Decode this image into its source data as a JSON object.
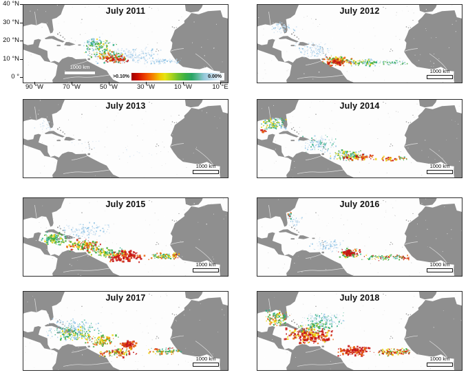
{
  "figure": {
    "land_color": "#8f8f8f",
    "ocean_color": "#fdfdfd",
    "border_color": "#2b2b2b",
    "description": "Eight map panels of the tropical Atlantic showing Sargassum areal density for July of 2011-2018"
  },
  "axis": {
    "y_tick_labels": [
      "40 °N",
      "30 °N",
      "20 °N",
      "10 °N",
      "0 °"
    ],
    "x_tick_labels": [
      "90 °W",
      "70 °W",
      "50 °W",
      "30 °W",
      "10 °W",
      "10 °E"
    ]
  },
  "colorbar": {
    "left_label": ">0.10%",
    "right_label": "0.00%"
  },
  "scalebar_label": "1000 km",
  "palette": {
    "r": "#c61616",
    "o": "#e8650e",
    "y": "#ecd512",
    "g": "#41ab36",
    "t": "#2fae85",
    "b": "#93c5e6",
    "p": "#d3e4f2"
  },
  "panels": [
    {
      "title": "July 2011",
      "scalebar": "light",
      "has_axes": true,
      "has_colorbar": true,
      "seed": 11,
      "clusters": [
        [
          150,
          74,
          58,
          13,
          230,
          1.5,
          "ppb"
        ],
        [
          205,
          82,
          28,
          5,
          80,
          1.3,
          "pb"
        ],
        [
          112,
          63,
          26,
          14,
          110,
          1.6,
          "tgby"
        ],
        [
          128,
          76,
          26,
          9,
          110,
          1.7,
          "gyotr"
        ],
        [
          134,
          80,
          20,
          6,
          45,
          1.9,
          "rro"
        ],
        [
          101,
          54,
          12,
          8,
          45,
          1.6,
          "tgb"
        ]
      ]
    },
    {
      "title": "July 2012",
      "scalebar": "dark",
      "has_axes": false,
      "has_colorbar": false,
      "seed": 12,
      "clusters": [
        [
          35,
          33,
          22,
          9,
          60,
          1.3,
          "ppb"
        ],
        [
          82,
          66,
          30,
          12,
          110,
          1.4,
          "ppb"
        ],
        [
          118,
          82,
          24,
          8,
          120,
          1.9,
          "yorg"
        ],
        [
          113,
          84,
          12,
          5,
          40,
          2.1,
          "rro"
        ],
        [
          155,
          84,
          26,
          6,
          100,
          1.6,
          "gtby"
        ],
        [
          196,
          84,
          26,
          5,
          70,
          1.3,
          "btpg"
        ]
      ]
    },
    {
      "title": "July 2013",
      "scalebar": "dark",
      "has_axes": false,
      "has_colorbar": false,
      "seed": 13,
      "clusters": [
        [
          32,
          37,
          16,
          9,
          26,
          1.1,
          "pp"
        ],
        [
          88,
          63,
          30,
          12,
          14,
          1.0,
          "p"
        ],
        [
          150,
          80,
          40,
          8,
          10,
          1.0,
          "p"
        ]
      ]
    },
    {
      "title": "July 2014",
      "scalebar": "dark",
      "has_axes": false,
      "has_colorbar": false,
      "seed": 14,
      "clusters": [
        [
          25,
          35,
          20,
          10,
          120,
          1.6,
          "gtby"
        ],
        [
          9,
          46,
          4,
          3,
          10,
          2.0,
          "ro"
        ],
        [
          88,
          64,
          30,
          13,
          120,
          1.4,
          "pbt"
        ],
        [
          133,
          81,
          30,
          9,
          130,
          1.7,
          "gytb"
        ],
        [
          150,
          84,
          28,
          5,
          60,
          2.1,
          "rroy"
        ],
        [
          191,
          86,
          13,
          4,
          30,
          1.9,
          "roy"
        ],
        [
          211,
          86,
          7,
          4,
          18,
          1.5,
          "tgo"
        ]
      ]
    },
    {
      "title": "July 2015",
      "scalebar": "dark",
      "has_axes": false,
      "has_colorbar": false,
      "seed": 15,
      "clusters": [
        [
          45,
          59,
          21,
          10,
          115,
          1.8,
          "ggty"
        ],
        [
          90,
          47,
          38,
          12,
          130,
          1.4,
          "pb"
        ],
        [
          88,
          69,
          27,
          10,
          140,
          1.9,
          "royg"
        ],
        [
          150,
          85,
          29,
          9,
          125,
          2.2,
          "rrro"
        ],
        [
          120,
          79,
          29,
          8,
          100,
          1.7,
          "gyt"
        ],
        [
          203,
          85,
          24,
          6,
          85,
          1.6,
          "gyot"
        ],
        [
          220,
          84,
          8,
          4,
          22,
          1.7,
          "roy"
        ]
      ]
    },
    {
      "title": "July 2016",
      "scalebar": "dark",
      "has_axes": false,
      "has_colorbar": false,
      "seed": 16,
      "clusters": [
        [
          47,
          25,
          3,
          6,
          22,
          1.5,
          "robt"
        ],
        [
          56,
          34,
          10,
          8,
          35,
          1.2,
          "pb"
        ],
        [
          104,
          69,
          30,
          10,
          100,
          1.3,
          "pb"
        ],
        [
          134,
          80,
          18,
          7,
          100,
          1.9,
          "rgyot"
        ],
        [
          132,
          80,
          8,
          5,
          32,
          2.3,
          "rr"
        ],
        [
          183,
          86,
          33,
          5,
          80,
          1.4,
          "gtyr"
        ],
        [
          213,
          87,
          9,
          4,
          24,
          1.5,
          "rog"
        ]
      ]
    },
    {
      "title": "July 2017",
      "scalebar": "dark",
      "has_axes": false,
      "has_colorbar": false,
      "seed": 17,
      "clusters": [
        [
          75,
          54,
          44,
          17,
          200,
          1.4,
          "pbt"
        ],
        [
          74,
          61,
          30,
          12,
          120,
          1.6,
          "gtyb"
        ],
        [
          114,
          71,
          25,
          10,
          95,
          1.8,
          "yog"
        ],
        [
          152,
          77,
          13,
          6,
          55,
          2.4,
          "rro"
        ],
        [
          138,
          88,
          30,
          7,
          105,
          1.8,
          "ygor"
        ],
        [
          203,
          86,
          28,
          6,
          95,
          1.6,
          "gyrot"
        ]
      ]
    },
    {
      "title": "July 2018",
      "scalebar": "dark",
      "has_axes": false,
      "has_colorbar": false,
      "seed": 18,
      "clusters": [
        [
          30,
          38,
          19,
          13,
          120,
          1.7,
          "gyto"
        ],
        [
          95,
          42,
          34,
          12,
          140,
          1.4,
          "pbt"
        ],
        [
          75,
          64,
          38,
          13,
          210,
          2.2,
          "rrroy"
        ],
        [
          85,
          51,
          30,
          8,
          85,
          1.6,
          "gty"
        ],
        [
          140,
          85,
          25,
          8,
          125,
          2.2,
          "rro"
        ],
        [
          194,
          87,
          28,
          6,
          100,
          1.6,
          "gyro"
        ],
        [
          216,
          86,
          9,
          4,
          25,
          1.5,
          "rgo"
        ]
      ]
    }
  ],
  "chart_data": {
    "type": "map",
    "title_labels": [
      "July 2011",
      "July 2012",
      "July 2013",
      "July 2014",
      "July 2015",
      "July 2016",
      "July 2017",
      "July 2018"
    ],
    "quantity": "Sargassum areal coverage (%)",
    "colorbar": {
      "max_label": ">0.10%",
      "min_label": "0.00%"
    },
    "extent": {
      "lon_ticks": [
        "90 °W",
        "70 °W",
        "50 °W",
        "30 °W",
        "10 °W",
        "10 °E"
      ],
      "lat_ticks": [
        "40 °N",
        "30 °N",
        "20 °N",
        "10 °N",
        "0 °"
      ]
    },
    "relative_coverage_by_panel": [
      "moderate",
      "moderate",
      "minimal",
      "moderate-high",
      "high",
      "moderate",
      "high",
      "very high"
    ]
  }
}
